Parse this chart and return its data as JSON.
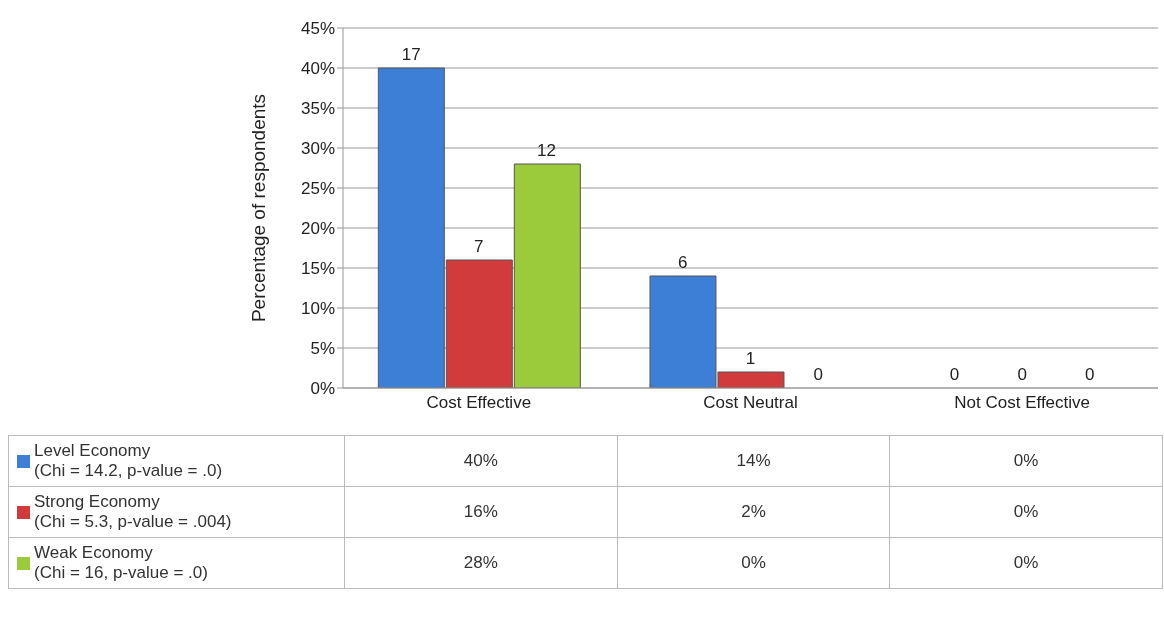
{
  "chart_data": {
    "type": "bar",
    "ylabel": "Percentage of respondents",
    "categories": [
      "Cost Effective",
      "Cost Neutral",
      "Not Cost Effective"
    ],
    "series": [
      {
        "name": "Level Economy\n(Chi = 14.2, p-value = .0)",
        "color": "#3d7fd6",
        "values": [
          40,
          14,
          0
        ],
        "value_labels": [
          "40%",
          "14%",
          "0%"
        ]
      },
      {
        "name": "Strong Economy\n(Chi = 5.3, p-value = .004)",
        "color": "#d23b3b",
        "values": [
          16,
          2,
          0
        ],
        "value_labels": [
          "16%",
          "2%",
          "0%"
        ]
      },
      {
        "name": "Weak Economy\n(Chi = 16, p-value = .0)",
        "color": "#9bcb3b",
        "values": [
          28,
          0,
          0
        ],
        "value_labels": [
          "28%",
          "0%",
          "0%"
        ]
      }
    ],
    "annotations": [
      "17",
      "7",
      "12",
      "6",
      "1",
      "0",
      "0",
      "0",
      "0"
    ],
    "ylim": [
      0,
      45
    ],
    "yticks": [
      {
        "value": 0,
        "label": "0%"
      },
      {
        "value": 5,
        "label": "5%"
      },
      {
        "value": 10,
        "label": "10%"
      },
      {
        "value": 15,
        "label": "15%"
      },
      {
        "value": 20,
        "label": "20%"
      },
      {
        "value": 25,
        "label": "25%"
      },
      {
        "value": 30,
        "label": "30%"
      },
      {
        "value": 35,
        "label": "35%"
      },
      {
        "value": 40,
        "label": "40%"
      },
      {
        "value": 45,
        "label": "45%"
      }
    ],
    "grid": "y",
    "legend": "bottom",
    "data_labels": true
  }
}
